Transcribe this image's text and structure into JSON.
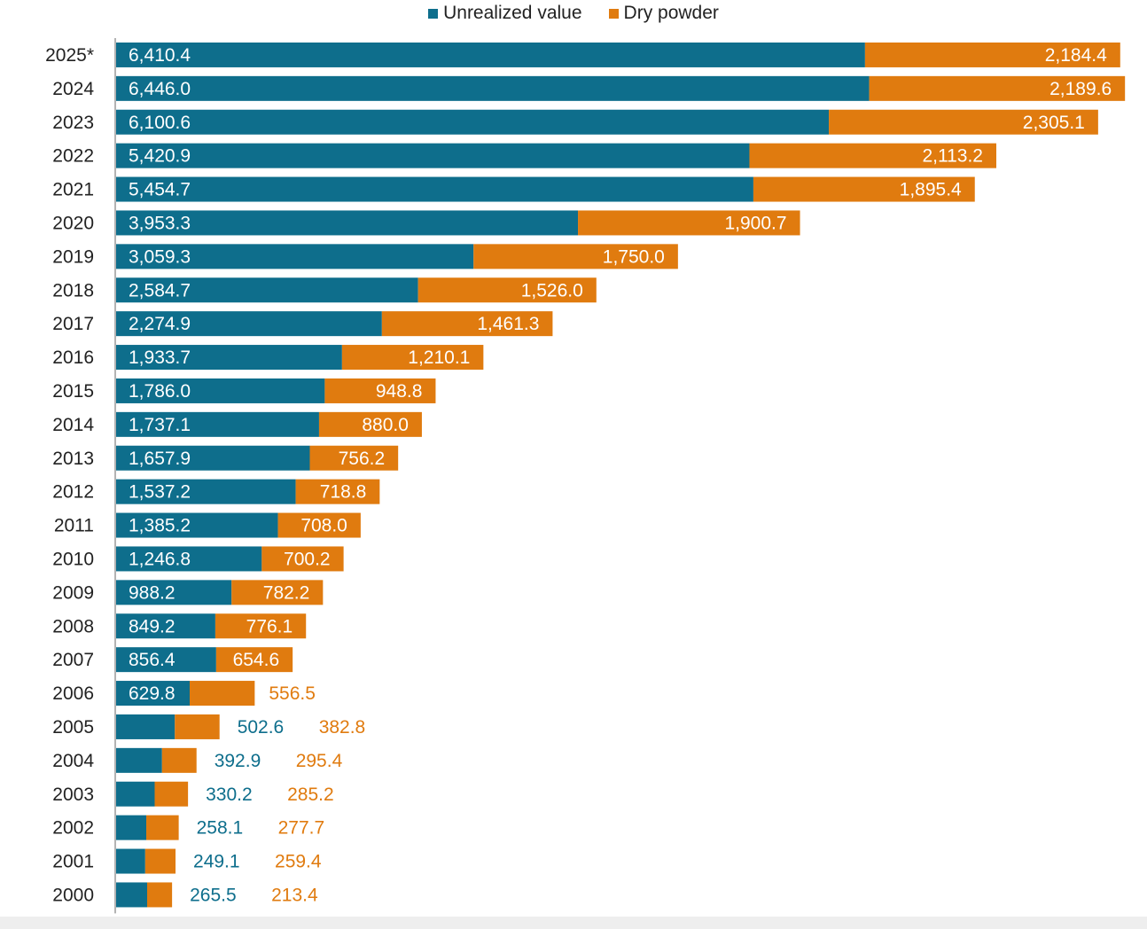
{
  "colors": {
    "unrealized": "#0E6E8C",
    "dry_powder": "#E07B0F",
    "label_inside": "#ffffff",
    "axis": "#9a9a9a",
    "year_text": "#222222"
  },
  "legend": {
    "unrealized_label": "Unrealized value",
    "dry_powder_label": "Dry powder"
  },
  "chart_data": {
    "type": "bar",
    "orientation": "horizontal",
    "stacked": true,
    "title": "",
    "xlabel": "",
    "ylabel": "",
    "xlim": [
      0,
      8800
    ],
    "legend_position": "top-center",
    "grid": false,
    "categories": [
      "2025*",
      "2024",
      "2023",
      "2022",
      "2021",
      "2020",
      "2019",
      "2018",
      "2017",
      "2016",
      "2015",
      "2014",
      "2013",
      "2012",
      "2011",
      "2010",
      "2009",
      "2008",
      "2007",
      "2006",
      "2005",
      "2004",
      "2003",
      "2002",
      "2001",
      "2000"
    ],
    "series": [
      {
        "name": "Unrealized value",
        "values": [
          6410.4,
          6446.0,
          6100.6,
          5420.9,
          5454.7,
          3953.3,
          3059.3,
          2584.7,
          2274.9,
          1933.7,
          1786.0,
          1737.1,
          1657.9,
          1537.2,
          1385.2,
          1246.8,
          988.2,
          849.2,
          856.4,
          629.8,
          502.6,
          392.9,
          330.2,
          258.1,
          249.1,
          265.5
        ],
        "labels": [
          "6,410.4",
          "6,446.0",
          "6,100.6",
          "5,420.9",
          "5,454.7",
          "3,953.3",
          "3,059.3",
          "2,584.7",
          "2,274.9",
          "1,933.7",
          "1,786.0",
          "1,737.1",
          "1,657.9",
          "1,537.2",
          "1,385.2",
          "1,246.8",
          "988.2",
          "849.2",
          "856.4",
          "629.8",
          "502.6",
          "392.9",
          "330.2",
          "258.1",
          "249.1",
          "265.5"
        ]
      },
      {
        "name": "Dry powder",
        "values": [
          2184.4,
          2189.6,
          2305.1,
          2113.2,
          1895.4,
          1900.7,
          1750.0,
          1526.0,
          1461.3,
          1210.1,
          948.8,
          880.0,
          756.2,
          718.8,
          708.0,
          700.2,
          782.2,
          776.1,
          654.6,
          556.5,
          382.8,
          295.4,
          285.2,
          277.7,
          259.4,
          213.4
        ],
        "labels": [
          "2,184.4",
          "2,189.6",
          "2,305.1",
          "2,113.2",
          "1,895.4",
          "1,900.7",
          "1,750.0",
          "1,526.0",
          "1,461.3",
          "1,210.1",
          "948.8",
          "880.0",
          "756.2",
          "718.8",
          "708.0",
          "700.2",
          "782.2",
          "776.1",
          "654.6",
          "556.5",
          "382.8",
          "295.4",
          "285.2",
          "277.7",
          "259.4",
          "213.4"
        ]
      }
    ]
  }
}
